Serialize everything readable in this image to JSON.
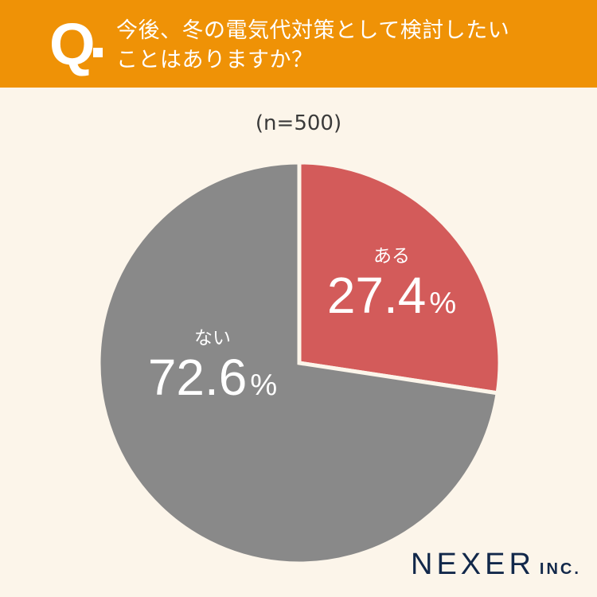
{
  "header": {
    "q_label": "Q",
    "question_line1": "今後、冬の電気代対策として検討したい",
    "question_line2": "ことはありますか？"
  },
  "sample_size": "(n=500)",
  "colors": {
    "header_bg": "#ef9206",
    "page_bg": "#fcf5ea",
    "yes": "#d35b5a",
    "no": "#898989",
    "logo": "#12284a"
  },
  "slices": [
    {
      "label": "ある",
      "value": "27.4",
      "unit": "%"
    },
    {
      "label": "ない",
      "value": "72.6",
      "unit": "%"
    }
  ],
  "logo": {
    "name": "NEXER",
    "suffix": "INC."
  },
  "chart_data": {
    "type": "pie",
    "title": "今後、冬の電気代対策として検討したいことはありますか？",
    "subtitle": "(n=500)",
    "categories": [
      "ある",
      "ない"
    ],
    "values": [
      27.4,
      72.6
    ],
    "unit": "%",
    "colors": [
      "#d35b5a",
      "#898989"
    ],
    "start_angle": "12 o'clock, clockwise"
  }
}
